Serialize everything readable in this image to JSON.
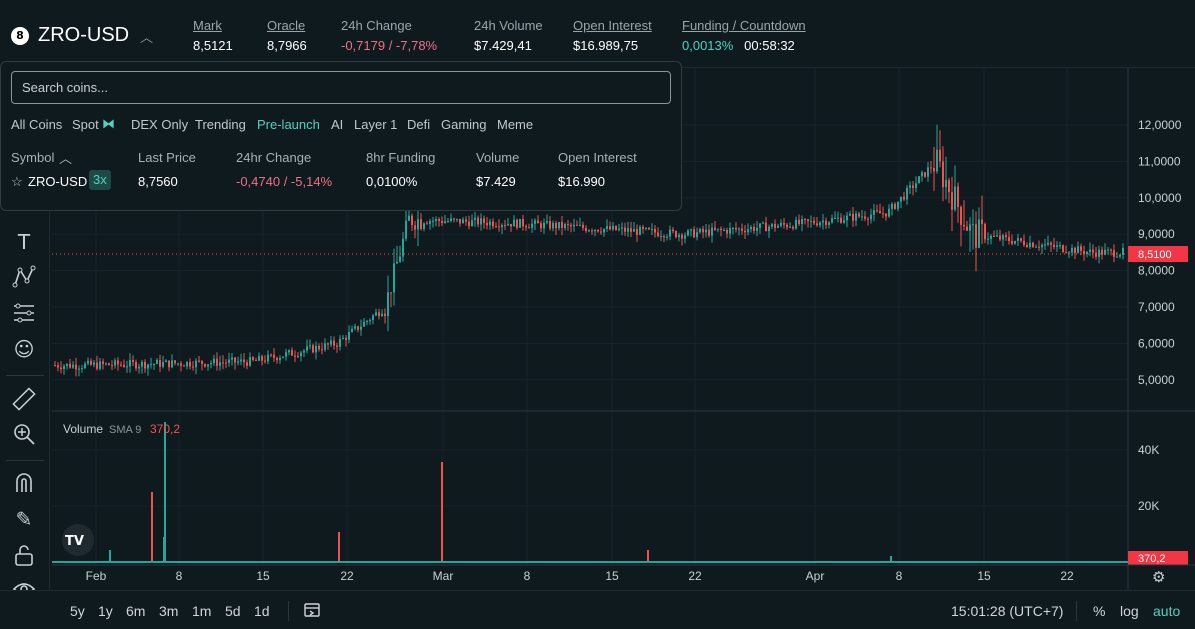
{
  "header": {
    "symbol_icon": "8",
    "symbol": "ZRO-USD",
    "mark_label": "Mark",
    "mark_value": "8,5121",
    "oracle_label": "Oracle",
    "oracle_value": "8,7966",
    "change_label": "24h Change",
    "change_value": "-0,7179 / -7,78%",
    "volume_label": "24h Volume",
    "volume_value": "$7.429,41",
    "oi_label": "Open Interest",
    "oi_value": "$16.989,75",
    "funding_label": "Funding / Countdown",
    "funding_value": "0,0013%",
    "countdown_value": "00:58:32"
  },
  "colors": {
    "up": "#26a69a",
    "down": "#ef5350",
    "accent": "#50d2c1",
    "negative_text": "#ed7088"
  },
  "panel": {
    "search_placeholder": "Search coins...",
    "categories": [
      "All Coins",
      "Spot",
      "DEX Only",
      "Trending",
      "Pre-launch",
      "AI",
      "Layer 1",
      "Defi",
      "Gaming",
      "Meme"
    ],
    "active_category": "Pre-launch",
    "columns": [
      "Symbol",
      "Last Price",
      "24hr Change",
      "8hr Funding",
      "Volume",
      "Open Interest"
    ],
    "row": {
      "star_icon": "☆",
      "symbol": "ZRO-USD",
      "leverage": "3x",
      "last_price": "8,7560",
      "change": "-0,4740 / -5,14%",
      "funding": "0,0100%",
      "volume": "$7.429",
      "open_interest": "$16.990"
    }
  },
  "chart_data": {
    "type": "candlestick",
    "price_axis_labels": [
      "12,0000",
      "11,0000",
      "10,0000",
      "9,0000",
      "8,0000",
      "7,0000",
      "6,0000",
      "5,0000"
    ],
    "current_price_label": "8,5100",
    "x_axis_labels": [
      "Feb",
      "8",
      "15",
      "22",
      "Mar",
      "8",
      "15",
      "22",
      "Apr",
      "8",
      "15",
      "22"
    ],
    "price_series_approx": [
      {
        "x": "Feb 1",
        "y": 5.4
      },
      {
        "x": "Feb 15",
        "y": 5.5
      },
      {
        "x": "Feb 22",
        "y": 6.0
      },
      {
        "x": "Feb 26",
        "y": 7.0
      },
      {
        "x": "Feb 28",
        "y": 9.4
      },
      {
        "x": "Mar 8",
        "y": 9.3
      },
      {
        "x": "Mar 22",
        "y": 9.0
      },
      {
        "x": "Apr 1",
        "y": 9.3
      },
      {
        "x": "Apr 8",
        "y": 9.6
      },
      {
        "x": "Apr 12",
        "y": 11.0
      },
      {
        "x": "Apr 15",
        "y": 9.0
      },
      {
        "x": "Apr 25",
        "y": 8.5
      }
    ],
    "volume_label": "Volume",
    "volume_sma_label": "SMA 9",
    "volume_sma_value": "370,2",
    "volume_axis_labels": [
      "40K",
      "20K"
    ],
    "volume_current_label": "370,2",
    "logo": "TV"
  },
  "bottombar": {
    "timeframes": [
      "5y",
      "1y",
      "6m",
      "3m",
      "1m",
      "5d",
      "1d"
    ],
    "clock": "15:01:28 (UTC+7)",
    "percent": "%",
    "log": "log",
    "auto": "auto"
  },
  "toolbar_icons": [
    "cursor-icon",
    "text-icon",
    "pattern-icon",
    "settings-lines-icon",
    "emoji-icon",
    "ruler-icon",
    "zoom-in-icon",
    "magnet-icon",
    "lock-pencil-icon",
    "lock-icon",
    "eye-icon"
  ]
}
